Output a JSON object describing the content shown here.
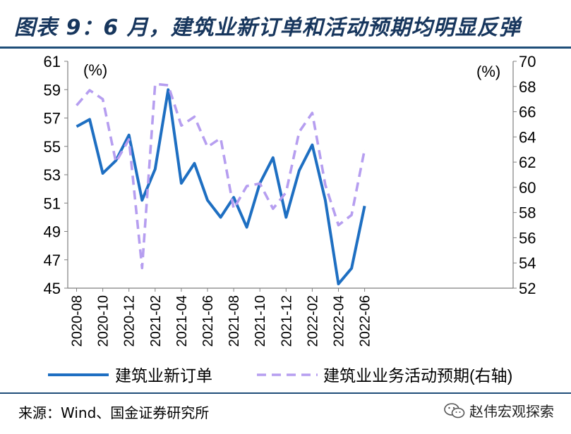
{
  "header": {
    "title": "图表 9：6 月，建筑业新订单和活动预期均明显反弹"
  },
  "footer": {
    "source": "来源：Wind、国金证券研究所",
    "watermark": "赵伟宏观探索",
    "watermark_icon": "wechat-icon"
  },
  "chart_data": {
    "type": "line",
    "left_unit": "(%)",
    "right_unit": "(%)",
    "y_left": {
      "min": 45,
      "max": 61,
      "ticks": [
        45,
        47,
        49,
        51,
        53,
        55,
        57,
        59,
        61
      ]
    },
    "y_right": {
      "min": 52,
      "max": 70,
      "ticks": [
        52,
        54,
        56,
        58,
        60,
        62,
        64,
        66,
        68,
        70
      ]
    },
    "x_tick_labels": [
      "2020-08",
      "2020-10",
      "2020-12",
      "2021-02",
      "2021-04",
      "2021-06",
      "2021-08",
      "2021-10",
      "2021-12",
      "2022-02",
      "2022-04",
      "2022-06"
    ],
    "x": [
      "2020-08",
      "2020-09",
      "2020-10",
      "2020-11",
      "2020-12",
      "2021-01",
      "2021-02",
      "2021-03",
      "2021-04",
      "2021-05",
      "2021-06",
      "2021-07",
      "2021-08",
      "2021-09",
      "2021-10",
      "2021-11",
      "2021-12",
      "2022-01",
      "2022-02",
      "2022-03",
      "2022-04",
      "2022-05",
      "2022-06"
    ],
    "series": [
      {
        "name": "建筑业新订单",
        "axis": "left",
        "color": "#1e6fc2",
        "style": "solid",
        "values": [
          56.4,
          56.9,
          53.1,
          54.0,
          55.8,
          51.2,
          53.4,
          59.0,
          52.4,
          53.8,
          51.2,
          50.0,
          51.4,
          49.3,
          52.4,
          54.2,
          50.0,
          53.3,
          55.1,
          51.2,
          45.3,
          46.4,
          50.8
        ]
      },
      {
        "name": "建筑业业务活动预期(右轴)",
        "axis": "right",
        "color": "#b69ef0",
        "style": "dashed",
        "values": [
          66.5,
          67.7,
          67.0,
          62.0,
          63.8,
          53.6,
          68.2,
          68.1,
          64.9,
          65.6,
          63.2,
          63.9,
          58.3,
          60.1,
          60.3,
          58.3,
          59.6,
          64.4,
          65.9,
          60.2,
          57.0,
          57.8,
          63.0
        ]
      }
    ],
    "grid": false,
    "legend_position": "bottom"
  }
}
